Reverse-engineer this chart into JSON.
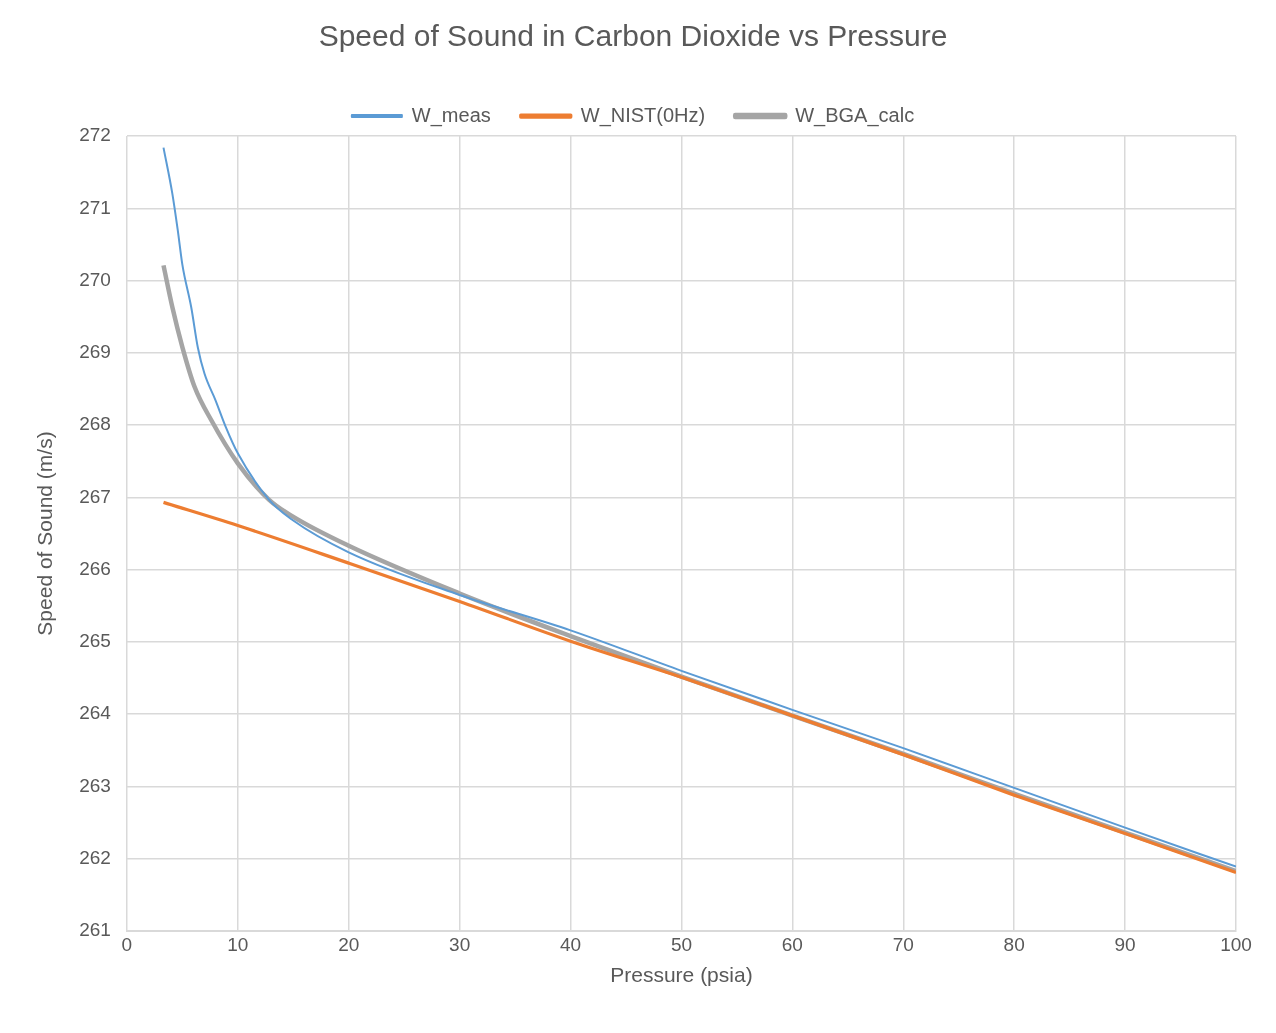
{
  "chart_data": {
    "type": "line",
    "title": "Speed of Sound in Carbon Dioxide vs Pressure",
    "xlabel": "Pressure (psia)",
    "ylabel": "Speed of Sound (m/s)",
    "xlim": [
      0,
      100
    ],
    "xticks": [
      0,
      10,
      20,
      30,
      40,
      50,
      60,
      70,
      80,
      90,
      100
    ],
    "ylim": [
      261,
      272
    ],
    "yticks": [
      261,
      262,
      263,
      264,
      265,
      266,
      267,
      268,
      269,
      270,
      271,
      272
    ],
    "grid": true,
    "legend": "top",
    "marker": "none",
    "line_style": "solid",
    "series": [
      {
        "name": "W_meas",
        "color": "#5b9bd5",
        "x": [
          3.3,
          4.1,
          4.6,
          5.0,
          5.8,
          6.4,
          7.0,
          8.0,
          8.9,
          10,
          12.8,
          14.9,
          20,
          30,
          40,
          50,
          60,
          70,
          80,
          90,
          100
        ],
        "values": [
          271.84,
          271.2,
          270.68,
          270.22,
          269.63,
          269.07,
          268.71,
          268.34,
          267.98,
          267.61,
          266.97,
          266.69,
          266.24,
          265.65,
          265.16,
          264.6,
          264.06,
          263.53,
          262.98,
          262.43,
          261.89
        ]
      },
      {
        "name": "W_NIST(0Hz)",
        "color": "#ed7d31",
        "x": [
          3.3,
          10,
          20,
          30,
          40,
          50,
          60,
          70,
          80,
          90,
          100
        ],
        "values": [
          266.93,
          266.61,
          266.09,
          265.56,
          265.01,
          264.51,
          263.98,
          263.44,
          262.88,
          262.35,
          261.81
        ]
      },
      {
        "name": "W_BGA_calc",
        "color": "#a5a5a5",
        "x": [
          3.3,
          4.1,
          5.0,
          6.1,
          7.6,
          10,
          12.8,
          14.9,
          20,
          30,
          40,
          50,
          60,
          70,
          80,
          90,
          100
        ],
        "values": [
          270.21,
          269.63,
          269.08,
          268.53,
          268.07,
          267.47,
          266.97,
          266.74,
          266.33,
          265.67,
          265.08,
          264.52,
          263.98,
          263.45,
          262.9,
          262.36,
          261.83
        ]
      }
    ]
  }
}
